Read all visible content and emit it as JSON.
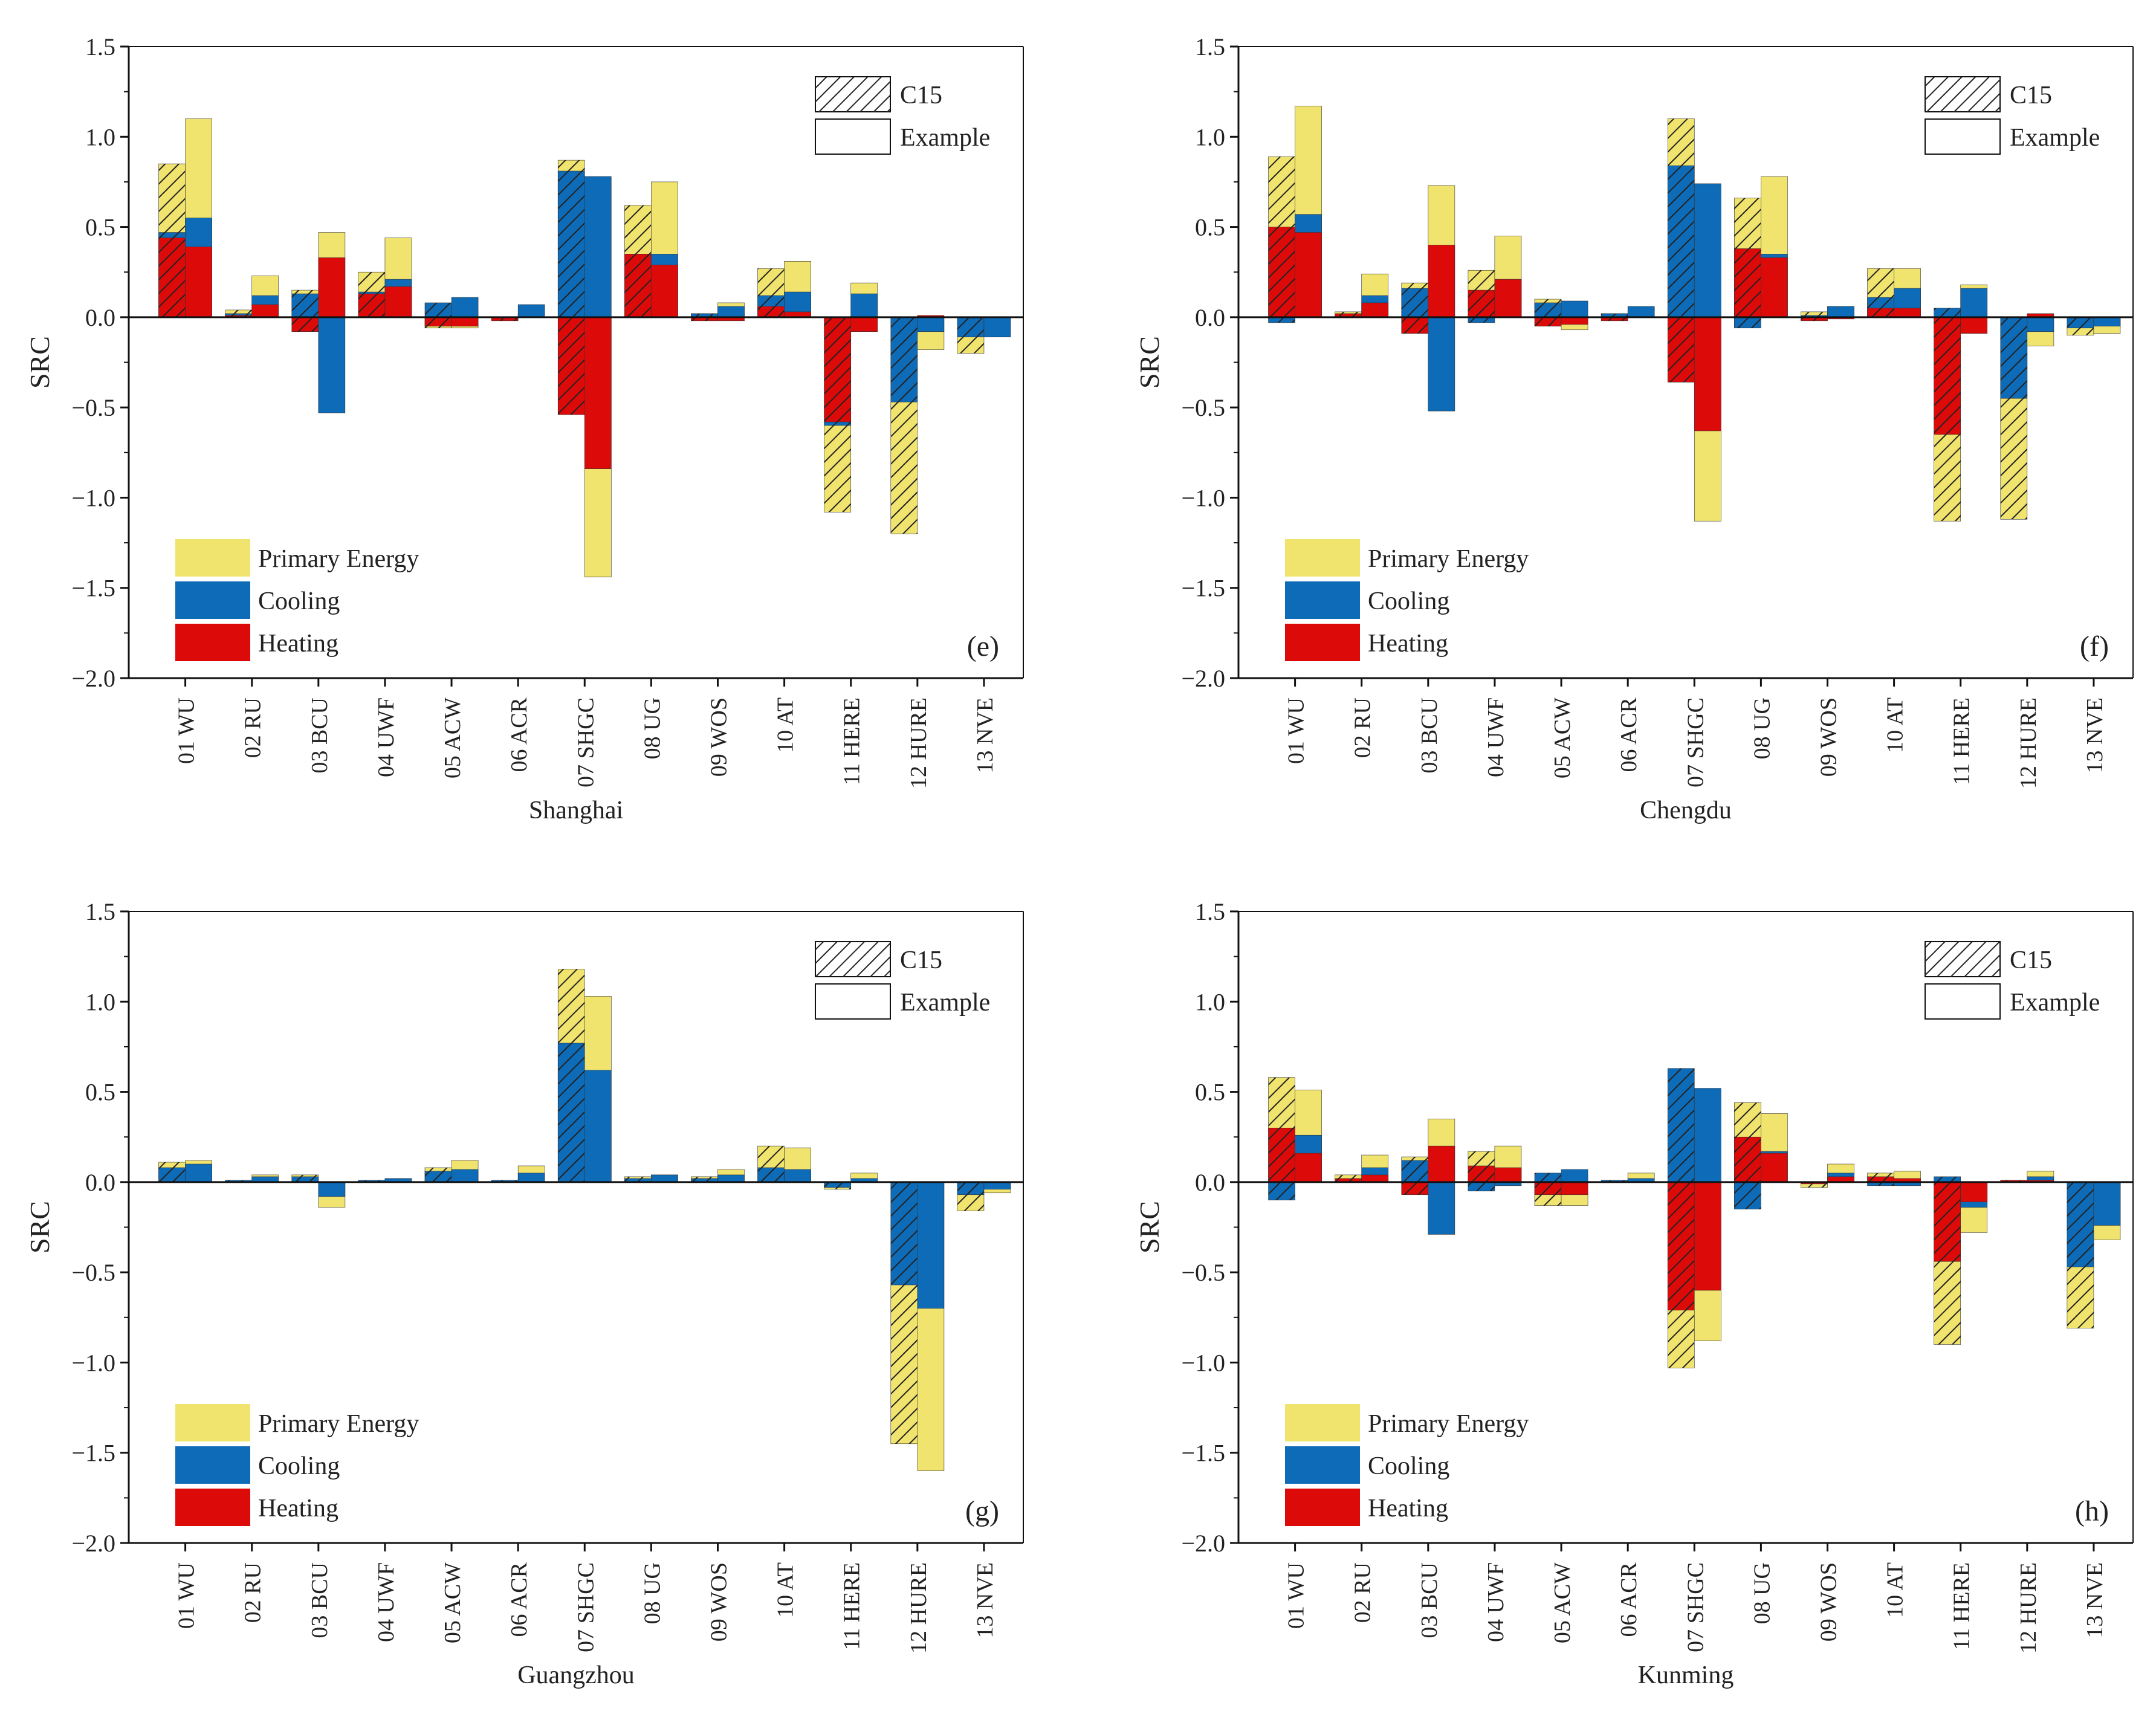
{
  "figure": {
    "legend": {
      "series": [
        "Primary Energy",
        "Cooling",
        "Heating"
      ],
      "style": [
        "C15",
        "Example"
      ]
    },
    "colors": {
      "heating": "#dd0a0a",
      "cooling": "#0e6bb8",
      "primary": "#f0e46e",
      "axis": "#111111",
      "hatch": "#222222"
    }
  },
  "chart_data": [
    {
      "type": "bar",
      "title": "",
      "panel": "(e)",
      "xlabel": "Shanghai",
      "ylabel": "SRC",
      "ylim": [
        -2.0,
        1.5
      ],
      "yticks": [
        "1.5",
        "1.0",
        "0.5",
        "0.0",
        "-0.5",
        "-1.0",
        "-1.5",
        "-2.0"
      ],
      "categories": [
        "01 WU",
        "02 RU",
        "03 BCU",
        "04 UWF",
        "05 ACW",
        "06 ACR",
        "07 SHGC",
        "08 UG",
        "09 WOS",
        "10 AT",
        "11 HERE",
        "12 HURE",
        "13 NVE"
      ],
      "series": [
        {
          "name": "Heating C15",
          "values": [
            0.44,
            0.01,
            -0.08,
            0.13,
            -0.05,
            -0.02,
            -0.54,
            0.35,
            -0.02,
            0.06,
            -0.58,
            0.0,
            0.0
          ]
        },
        {
          "name": "Cooling C15",
          "values": [
            0.47,
            0.02,
            0.13,
            0.14,
            0.08,
            0.0,
            0.81,
            0.35,
            0.02,
            0.12,
            -0.6,
            -0.47,
            -0.11
          ]
        },
        {
          "name": "Primary Energy C15",
          "values": [
            0.85,
            0.04,
            0.15,
            0.25,
            -0.06,
            0.0,
            0.87,
            0.62,
            0.02,
            0.27,
            -1.08,
            -1.2,
            -0.2
          ]
        },
        {
          "name": "Heating Example",
          "values": [
            0.39,
            0.07,
            0.33,
            0.17,
            -0.05,
            0.0,
            -0.84,
            0.29,
            -0.02,
            0.03,
            -0.08,
            0.01,
            0.0
          ]
        },
        {
          "name": "Cooling Example",
          "values": [
            0.55,
            0.12,
            -0.53,
            0.21,
            0.11,
            0.07,
            0.78,
            0.35,
            0.06,
            0.14,
            0.13,
            -0.08,
            -0.11
          ]
        },
        {
          "name": "Primary Energy Example",
          "values": [
            1.1,
            0.23,
            0.47,
            0.44,
            -0.06,
            0.02,
            -1.44,
            0.75,
            0.08,
            0.31,
            0.19,
            -0.18,
            -0.01
          ]
        }
      ]
    },
    {
      "type": "bar",
      "title": "",
      "panel": "(f)",
      "xlabel": "Chengdu",
      "ylabel": "SRC",
      "ylim": [
        -2.0,
        1.5
      ],
      "yticks": [
        "1.5",
        "1.0",
        "0.5",
        "0.0",
        "-0.5",
        "-1.0",
        "-1.5",
        "-2.0"
      ],
      "categories": [
        "01 WU",
        "02 RU",
        "03 BCU",
        "04 UWF",
        "05 ACW",
        "06 ACR",
        "07 SHGC",
        "08 UG",
        "09 WOS",
        "10 AT",
        "11 HERE",
        "12 HURE",
        "13 NVE"
      ],
      "series": [
        {
          "name": "Heating C15",
          "values": [
            0.5,
            0.02,
            -0.09,
            0.15,
            -0.05,
            -0.02,
            -0.36,
            0.38,
            -0.02,
            0.05,
            -0.65,
            0.0,
            0.0
          ]
        },
        {
          "name": "Cooling C15",
          "values": [
            -0.03,
            0.01,
            0.16,
            -0.03,
            0.08,
            0.02,
            0.84,
            -0.06,
            0.01,
            0.11,
            0.05,
            -0.45,
            -0.06
          ]
        },
        {
          "name": "Primary Energy C15",
          "values": [
            0.89,
            0.03,
            0.19,
            0.26,
            0.1,
            0.02,
            1.1,
            0.66,
            0.03,
            0.27,
            -1.13,
            -1.12,
            -0.1
          ]
        },
        {
          "name": "Heating Example",
          "values": [
            0.47,
            0.08,
            0.4,
            0.21,
            -0.04,
            0.0,
            -0.63,
            0.33,
            -0.01,
            0.05,
            -0.09,
            0.02,
            0.0
          ]
        },
        {
          "name": "Cooling Example",
          "values": [
            0.57,
            0.12,
            -0.52,
            0.21,
            0.09,
            0.06,
            0.74,
            0.35,
            0.06,
            0.16,
            0.16,
            -0.08,
            -0.05
          ]
        },
        {
          "name": "Primary Energy Example",
          "values": [
            1.17,
            0.24,
            0.73,
            0.45,
            -0.07,
            0.02,
            -1.13,
            0.78,
            0.06,
            0.27,
            0.18,
            -0.16,
            -0.09
          ]
        }
      ]
    },
    {
      "type": "bar",
      "title": "",
      "panel": "(g)",
      "xlabel": "Guangzhou",
      "ylabel": "SRC",
      "ylim": [
        -2.0,
        1.5
      ],
      "yticks": [
        "1.5",
        "1.0",
        "0.5",
        "0.0",
        "-0.5",
        "-1.0",
        "-1.5",
        "-2.0"
      ],
      "categories": [
        "01 WU",
        "02 RU",
        "03 BCU",
        "04 UWF",
        "05 ACW",
        "06 ACR",
        "07 SHGC",
        "08 UG",
        "09 WOS",
        "10 AT",
        "11 HERE",
        "12 HURE",
        "13 NVE"
      ],
      "series": [
        {
          "name": "Heating C15",
          "values": [
            0,
            0,
            0,
            0,
            0,
            0,
            0,
            0,
            0,
            0,
            0,
            0,
            0
          ]
        },
        {
          "name": "Cooling C15",
          "values": [
            0.08,
            0.01,
            0.03,
            0.01,
            0.06,
            0.01,
            0.77,
            0.02,
            0.02,
            0.08,
            -0.03,
            -0.57,
            -0.07
          ]
        },
        {
          "name": "Primary Energy C15",
          "values": [
            0.11,
            0.01,
            0.04,
            0.01,
            0.08,
            0.01,
            1.18,
            0.03,
            0.03,
            0.2,
            -0.04,
            -1.45,
            -0.16
          ]
        },
        {
          "name": "Heating Example",
          "values": [
            0,
            0,
            0,
            0,
            0,
            0,
            0,
            0,
            0,
            0,
            0,
            0,
            0
          ]
        },
        {
          "name": "Cooling Example",
          "values": [
            0.1,
            0.03,
            -0.08,
            0.02,
            0.07,
            0.05,
            0.62,
            0.04,
            0.04,
            0.07,
            0.02,
            -0.7,
            -0.04
          ]
        },
        {
          "name": "Primary Energy Example",
          "values": [
            0.12,
            0.04,
            -0.14,
            0.02,
            0.12,
            0.09,
            1.03,
            0.04,
            0.07,
            0.19,
            0.05,
            -1.6,
            -0.06
          ]
        }
      ]
    },
    {
      "type": "bar",
      "title": "",
      "panel": "(h)",
      "xlabel": "Kunming",
      "ylabel": "SRC",
      "ylim": [
        -2.0,
        1.5
      ],
      "yticks": [
        "1.5",
        "1.0",
        "0.5",
        "0.0",
        "-0.5",
        "-1.0",
        "-1.5",
        "-2.0"
      ],
      "categories": [
        "01 WU",
        "02 RU",
        "03 BCU",
        "04 UWF",
        "05 ACW",
        "06 ACR",
        "07 SHGC",
        "08 UG",
        "09 WOS",
        "10 AT",
        "11 HERE",
        "12 HURE",
        "13 NVE"
      ],
      "series": [
        {
          "name": "Heating C15",
          "values": [
            0.3,
            0.02,
            -0.07,
            0.09,
            -0.07,
            0.0,
            -0.71,
            0.25,
            -0.01,
            0.03,
            -0.44,
            0.01,
            0.0
          ]
        },
        {
          "name": "Cooling C15",
          "values": [
            -0.1,
            0.01,
            0.12,
            -0.05,
            0.05,
            0.01,
            0.63,
            -0.15,
            0.0,
            -0.02,
            0.03,
            0.01,
            -0.47
          ]
        },
        {
          "name": "Primary Energy C15",
          "values": [
            0.58,
            0.04,
            0.14,
            0.17,
            -0.13,
            0.01,
            -1.03,
            0.44,
            -0.03,
            0.05,
            -0.9,
            0.01,
            -0.81
          ]
        },
        {
          "name": "Heating Example",
          "values": [
            0.16,
            0.04,
            0.2,
            0.08,
            -0.07,
            0.0,
            -0.6,
            0.16,
            0.03,
            0.02,
            -0.11,
            0.01,
            0.0
          ]
        },
        {
          "name": "Cooling Example",
          "values": [
            0.26,
            0.08,
            -0.29,
            -0.02,
            0.07,
            0.02,
            0.52,
            0.17,
            0.05,
            -0.02,
            -0.14,
            0.03,
            -0.24
          ]
        },
        {
          "name": "Primary Energy Example",
          "values": [
            0.51,
            0.15,
            0.35,
            0.2,
            -0.13,
            0.05,
            -0.88,
            0.38,
            0.1,
            0.06,
            -0.28,
            0.06,
            -0.32
          ]
        }
      ]
    }
  ]
}
